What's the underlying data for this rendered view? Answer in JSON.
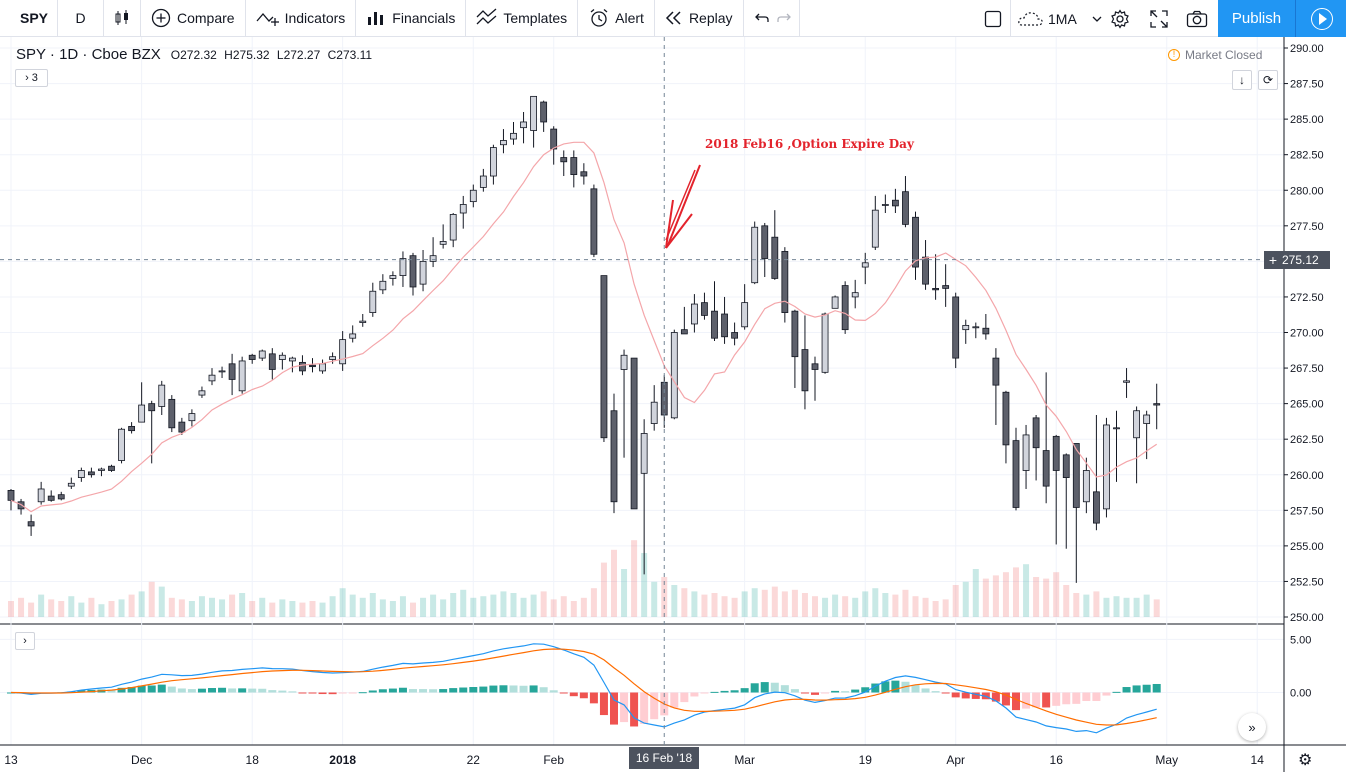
{
  "toolbar": {
    "symbol": "SPY",
    "interval": "D",
    "compare": "Compare",
    "indicators": "Indicators",
    "financials": "Financials",
    "templates": "Templates",
    "alert": "Alert",
    "replay": "Replay",
    "layout": "1MA",
    "publish": "Publish"
  },
  "legend": {
    "title": "SPY · 1D · Cboe BZX",
    "o_label": "O",
    "o": "272.32",
    "h_label": "H",
    "h": "275.32",
    "l_label": "L",
    "l": "272.27",
    "c_label": "C",
    "c": "273.11",
    "collapsed_count": "3"
  },
  "status": {
    "market": "Market Closed"
  },
  "annotation": {
    "text": "2018 Feb16 ,Option Expire Day",
    "color": "#e3232c"
  },
  "crosshair": {
    "price": "275.12",
    "date": "16 Feb '18"
  },
  "colors": {
    "up_candle": "#d1d4dc",
    "down_candle": "#5d606b",
    "ma_line": "#f4a6aa",
    "macd_line": "#2196f3",
    "signal_line": "#ff6d00",
    "hist_up": "#26a69a",
    "hist_down": "#ef5350",
    "publish": "#2196f3"
  },
  "chart_data": {
    "type": "candlestick",
    "symbol": "SPY",
    "timeframe": "1D",
    "price_axis": [
      "290.00",
      "287.50",
      "285.00",
      "282.50",
      "280.00",
      "277.50",
      "275.00",
      "272.50",
      "270.00",
      "267.50",
      "265.00",
      "262.50",
      "260.00",
      "257.50",
      "255.00",
      "252.50",
      "250.00"
    ],
    "ylim": [
      250,
      290
    ],
    "macd_axis": [
      "5.00",
      "0.00"
    ],
    "macd_ylim": [
      -5.6,
      5.6
    ],
    "x_ticks": [
      {
        "label": "13",
        "i": 0
      },
      {
        "label": "Dec",
        "i": 13
      },
      {
        "label": "18",
        "i": 24
      },
      {
        "label": "2018",
        "i": 33
      },
      {
        "label": "22",
        "i": 46
      },
      {
        "label": "Feb",
        "i": 54
      },
      {
        "label": "Mar",
        "i": 73
      },
      {
        "label": "19",
        "i": 85
      },
      {
        "label": "Apr",
        "i": 94
      },
      {
        "label": "16",
        "i": 104
      },
      {
        "label": "May",
        "i": 115
      },
      {
        "label": "14",
        "i": 124
      }
    ],
    "candles": [
      [
        258.9,
        258.2,
        259,
        257.5
      ],
      [
        258.1,
        257.6,
        258.3,
        257.2
      ],
      [
        256.7,
        256.4,
        257.2,
        255.7
      ],
      [
        258.1,
        259,
        259.5,
        257.9
      ],
      [
        258.5,
        258.2,
        258.9,
        258.1
      ],
      [
        258.6,
        258.3,
        258.8,
        258.2
      ],
      [
        259.2,
        259.4,
        259.8,
        259
      ],
      [
        259.8,
        260.3,
        260.5,
        259.5
      ],
      [
        260.2,
        260,
        260.5,
        259.8
      ],
      [
        260.3,
        260.4,
        260.5,
        259.9
      ],
      [
        260.6,
        260.3,
        260.7,
        260.2
      ],
      [
        261,
        263.2,
        263.3,
        260.8
      ],
      [
        263.4,
        263.1,
        263.7,
        262.9
      ],
      [
        263.7,
        264.9,
        266.5,
        264.3
      ],
      [
        265,
        264.5,
        265.2,
        260.8
      ],
      [
        264.8,
        266.3,
        266.6,
        264.2
      ],
      [
        265.3,
        263.3,
        265.6,
        263
      ],
      [
        263.7,
        263,
        264,
        262.8
      ],
      [
        263.8,
        264.3,
        264.6,
        263.4
      ],
      [
        265.6,
        265.9,
        266.2,
        265.4
      ],
      [
        266.6,
        267,
        267.5,
        266.3
      ],
      [
        267.3,
        267.3,
        267.6,
        266.8
      ],
      [
        267.8,
        266.7,
        268.5,
        265.6
      ],
      [
        265.9,
        268,
        268.3,
        265.7
      ],
      [
        268.4,
        268.1,
        268.5,
        267.8
      ],
      [
        268.2,
        268.7,
        268.8,
        268
      ],
      [
        268.5,
        267.4,
        268.9,
        266.7
      ],
      [
        268.1,
        268.4,
        268.6,
        267.4
      ],
      [
        268,
        268.2,
        268.3,
        267.2
      ],
      [
        267.9,
        267.3,
        268.4,
        267
      ],
      [
        267.7,
        267.6,
        268.2,
        267.2
      ],
      [
        267.3,
        267.8,
        268.1,
        267.1
      ],
      [
        268.1,
        268.3,
        268.6,
        267.8
      ],
      [
        267.8,
        269.5,
        270.1,
        267.3
      ],
      [
        269.6,
        269.9,
        270.5,
        269.3
      ],
      [
        270.7,
        270.8,
        271.3,
        270.4
      ],
      [
        271.4,
        272.9,
        273.5,
        271.1
      ],
      [
        273,
        273.6,
        274.1,
        272.7
      ],
      [
        273.8,
        274,
        274.3,
        273.3
      ],
      [
        274,
        275.2,
        275.7,
        273.2
      ],
      [
        275.4,
        273.2,
        275.6,
        272.6
      ],
      [
        273.4,
        275,
        275.8,
        272.9
      ],
      [
        275,
        275.4,
        276.7,
        274.6
      ],
      [
        276.2,
        276.4,
        277.6,
        275.9
      ],
      [
        276.5,
        278.3,
        278.4,
        276
      ],
      [
        278.4,
        279,
        279.6,
        277.3
      ],
      [
        279.2,
        280,
        280.4,
        278.8
      ],
      [
        280.2,
        281,
        281.5,
        279.9
      ],
      [
        281,
        283,
        283.2,
        280.4
      ],
      [
        283.2,
        283.5,
        284.3,
        282.6
      ],
      [
        283.6,
        284,
        284.8,
        283.2
      ],
      [
        284.4,
        284.8,
        285.5,
        283.3
      ],
      [
        284.2,
        286.6,
        286.6,
        283
      ],
      [
        286.2,
        284.8,
        286.3,
        284.1
      ],
      [
        284.3,
        282.9,
        284.5,
        281.8
      ],
      [
        282.3,
        282,
        282.8,
        281
      ],
      [
        282.3,
        281.1,
        282.8,
        280.2
      ],
      [
        281.3,
        281,
        281.9,
        280.4
      ],
      [
        280.1,
        275.5,
        280.4,
        275.3
      ],
      [
        274,
        262.6,
        274,
        262.3
      ],
      [
        264.5,
        258.1,
        265.7,
        257.3
      ],
      [
        267.4,
        268.4,
        268.8,
        261.2
      ],
      [
        268.2,
        257.6,
        268.2,
        257.6
      ],
      [
        260.1,
        262.9,
        263.9,
        253
      ],
      [
        263.6,
        265.1,
        266.3,
        263.1
      ],
      [
        266.5,
        264.2,
        267,
        263.3
      ],
      [
        264,
        270,
        270.2,
        263.9
      ],
      [
        270.2,
        269.9,
        271.8,
        269.9
      ],
      [
        270.6,
        272,
        272.7,
        270
      ],
      [
        272.1,
        271.2,
        272.8,
        270.9
      ],
      [
        271.5,
        269.6,
        273.6,
        269.4
      ],
      [
        271.3,
        269.7,
        272.5,
        269.2
      ],
      [
        270,
        269.6,
        270.7,
        269.1
      ],
      [
        270.4,
        272.1,
        273.4,
        270.2
      ],
      [
        273.5,
        277.4,
        277.8,
        273.4
      ],
      [
        277.5,
        275.2,
        277.7,
        273.9
      ],
      [
        276.7,
        273.8,
        278.6,
        273.7
      ],
      [
        275.7,
        271.4,
        276,
        270.7
      ],
      [
        271.5,
        268.3,
        271.6,
        266.1
      ],
      [
        268.8,
        265.9,
        271.2,
        264.6
      ],
      [
        267.8,
        267.4,
        268.3,
        265.2
      ],
      [
        267.2,
        271.3,
        271.4,
        267.1
      ],
      [
        271.7,
        272.5,
        272.6,
        271.7
      ],
      [
        273.3,
        270.2,
        273.6,
        269.9
      ],
      [
        272.5,
        272.8,
        273.7,
        271.7
      ],
      [
        274.6,
        274.9,
        275.6,
        273.4
      ],
      [
        276,
        278.6,
        279.6,
        275.8
      ],
      [
        279,
        279,
        279.7,
        278.4
      ],
      [
        279.3,
        278.9,
        280.1,
        278.4
      ],
      [
        279.9,
        277.6,
        281,
        277.4
      ],
      [
        278.1,
        274.6,
        278.5,
        273.7
      ],
      [
        275.3,
        273.4,
        276.5,
        273
      ],
      [
        273.1,
        273,
        275.5,
        272.3
      ],
      [
        273.3,
        273.1,
        274.8,
        271.8
      ],
      [
        272.5,
        268.2,
        272.8,
        267.5
      ],
      [
        270.2,
        270.5,
        270.9,
        269.2
      ],
      [
        270.4,
        270.4,
        270.7,
        269.6
      ],
      [
        270.3,
        269.9,
        271.3,
        269.5
      ],
      [
        268.2,
        266.3,
        268.9,
        263.5
      ],
      [
        265.8,
        262.1,
        265.9,
        260.8
      ],
      [
        262.4,
        257.7,
        263.3,
        257.5
      ],
      [
        260.3,
        262.8,
        263.5,
        259
      ],
      [
        264,
        261.9,
        264.2,
        259.6
      ],
      [
        261.7,
        259.2,
        267.2,
        258
      ],
      [
        262.7,
        260.3,
        262.8,
        255.1
      ],
      [
        261.4,
        259.8,
        261.5,
        254.8
      ],
      [
        262.2,
        257.7,
        262.2,
        252.4
      ],
      [
        258.1,
        260.3,
        261.2,
        257.3
      ],
      [
        258.8,
        256.6,
        264.2,
        256.1
      ],
      [
        257.6,
        263.5,
        264,
        257
      ],
      [
        263.3,
        263.3,
        264.5,
        259.5
      ],
      [
        266.5,
        266.6,
        267.5,
        265.4
      ],
      [
        262.6,
        264.5,
        264.8,
        259.4
      ],
      [
        263.6,
        264.2,
        264.5,
        261.1
      ],
      [
        265,
        264.9,
        266.4,
        263.2
      ]
    ],
    "ma_period": 10,
    "macd_note": "MACD with histogram, MACD line and signal line"
  }
}
